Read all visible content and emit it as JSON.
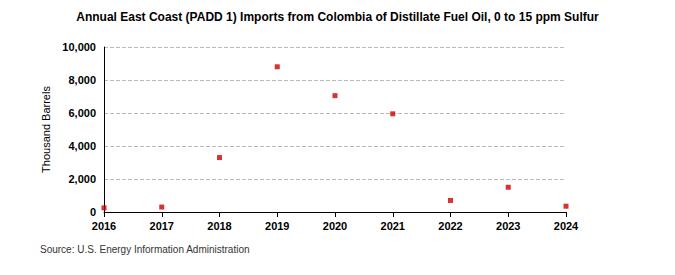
{
  "chart_data": {
    "type": "scatter",
    "title": "Annual East Coast (PADD 1) Imports from Colombia of Distillate Fuel Oil, 0 to 15 ppm Sulfur",
    "y_label": "Thousand Barrels",
    "annotations": [
      "Source: U.S. Energy Information Administration"
    ],
    "x": [
      2016,
      2017,
      2018,
      2019,
      2020,
      2021,
      2022,
      2023,
      2024
    ],
    "values": [
      250,
      300,
      3300,
      8800,
      7050,
      5950,
      700,
      1500,
      350
    ],
    "color": "#cc0000",
    "marker": "square",
    "xlim": [
      2016,
      2024
    ],
    "xticks": [
      2016,
      2017,
      2018,
      2019,
      2020,
      2021,
      2022,
      2023,
      2024
    ],
    "ylim": [
      0,
      10000
    ],
    "yticks": [
      0,
      {
        "value": 2000,
        "label": "2,000"
      },
      {
        "value": 4000,
        "label": "4,000"
      },
      {
        "value": 6000,
        "label": "6,000"
      },
      {
        "value": 8000,
        "label": "8,000"
      },
      {
        "value": 10000,
        "label": "10,000"
      }
    ],
    "grid": true
  }
}
